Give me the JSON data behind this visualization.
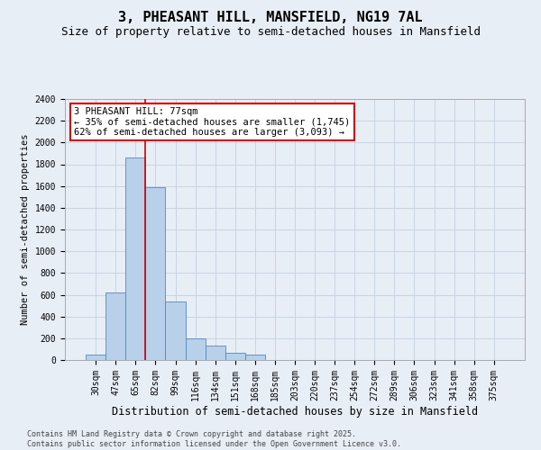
{
  "title": "3, PHEASANT HILL, MANSFIELD, NG19 7AL",
  "subtitle": "Size of property relative to semi-detached houses in Mansfield",
  "xlabel": "Distribution of semi-detached houses by size in Mansfield",
  "ylabel": "Number of semi-detached properties",
  "categories": [
    "30sqm",
    "47sqm",
    "65sqm",
    "82sqm",
    "99sqm",
    "116sqm",
    "134sqm",
    "151sqm",
    "168sqm",
    "185sqm",
    "203sqm",
    "220sqm",
    "237sqm",
    "254sqm",
    "272sqm",
    "289sqm",
    "306sqm",
    "323sqm",
    "341sqm",
    "358sqm",
    "375sqm"
  ],
  "values": [
    50,
    620,
    1860,
    1590,
    540,
    200,
    130,
    70,
    50,
    0,
    0,
    0,
    0,
    0,
    0,
    0,
    0,
    0,
    0,
    0,
    0
  ],
  "bar_color": "#b8d0ea",
  "bar_edge_color": "#5588bb",
  "grid_color": "#c8d4e4",
  "background_color": "#e8eef6",
  "vline_x": 2.5,
  "annotation_text": "3 PHEASANT HILL: 77sqm\n← 35% of semi-detached houses are smaller (1,745)\n62% of semi-detached houses are larger (3,093) →",
  "annotation_box_color": "#ffffff",
  "annotation_box_edge": "#cc0000",
  "vline_color": "#cc0000",
  "ylim": [
    0,
    2400
  ],
  "yticks": [
    0,
    200,
    400,
    600,
    800,
    1000,
    1200,
    1400,
    1600,
    1800,
    2000,
    2200,
    2400
  ],
  "footnote": "Contains HM Land Registry data © Crown copyright and database right 2025.\nContains public sector information licensed under the Open Government Licence v3.0.",
  "title_fontsize": 11,
  "subtitle_fontsize": 9,
  "xlabel_fontsize": 8.5,
  "ylabel_fontsize": 7.5,
  "tick_fontsize": 7,
  "annotation_fontsize": 7.5,
  "footnote_fontsize": 6
}
